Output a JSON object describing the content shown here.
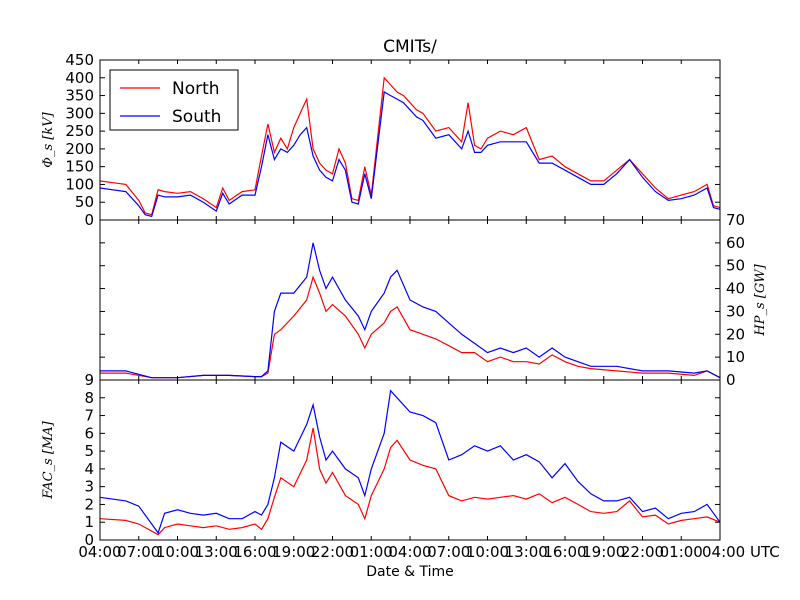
{
  "chart_data": {
    "type": "line",
    "title": "CMITs/",
    "xlabel": "Date & Time",
    "x_tick_labels": [
      "04:00",
      "07:00",
      "10:00",
      "13:00",
      "16:00",
      "19:00",
      "22:00",
      "01:00",
      "04:00",
      "07:00",
      "10:00",
      "13:00",
      "16:00",
      "19:00",
      "22:00",
      "01:00",
      "04:00 UTC"
    ],
    "xlim": [
      0,
      48
    ],
    "x_units": "hours since first tick",
    "legend": {
      "placement": "top-left",
      "entries": [
        "North",
        "South"
      ]
    },
    "colors": {
      "North": "#ff0000",
      "South": "#0000ff"
    },
    "panels": [
      {
        "name": "potential",
        "ylabel": "Φ_s [kV]",
        "ylim": [
          0,
          450
        ],
        "yticks": [
          0,
          50,
          100,
          150,
          200,
          250,
          300,
          350,
          400,
          450
        ],
        "y_axis_side": "left",
        "x": [
          0,
          1,
          2,
          3,
          3.5,
          4,
          4.5,
          5,
          6,
          7,
          8,
          9,
          9.5,
          10,
          11,
          12,
          12.5,
          13,
          13.5,
          14,
          14.5,
          15,
          15.5,
          16,
          16.5,
          17,
          17.5,
          18,
          18.5,
          19,
          19.5,
          20,
          20.5,
          21,
          22,
          22.5,
          23,
          23.5,
          24,
          24.5,
          25,
          26,
          27,
          28,
          28.5,
          29,
          29.5,
          30,
          31,
          32,
          33,
          34,
          35,
          36,
          37,
          38,
          39,
          40,
          41,
          42,
          43,
          44,
          45,
          46,
          47,
          47.5,
          48
        ],
        "series": [
          {
            "name": "North",
            "values": [
              110,
              105,
              100,
              55,
              20,
              15,
              85,
              80,
              75,
              80,
              60,
              35,
              90,
              55,
              80,
              85,
              180,
              270,
              190,
              230,
              200,
              260,
              300,
              340,
              200,
              160,
              140,
              130,
              200,
              160,
              60,
              55,
              150,
              70,
              400,
              380,
              360,
              350,
              330,
              310,
              300,
              250,
              260,
              220,
              330,
              210,
              200,
              230,
              250,
              240,
              260,
              170,
              180,
              150,
              130,
              110,
              110,
              140,
              170,
              130,
              90,
              60,
              70,
              80,
              100,
              40,
              35
            ]
          },
          {
            "name": "South",
            "values": [
              90,
              85,
              80,
              40,
              15,
              10,
              70,
              65,
              65,
              70,
              50,
              25,
              75,
              45,
              70,
              70,
              150,
              240,
              170,
              200,
              190,
              210,
              240,
              260,
              180,
              140,
              120,
              110,
              170,
              140,
              50,
              45,
              130,
              60,
              360,
              350,
              340,
              330,
              310,
              290,
              280,
              230,
              240,
              200,
              250,
              190,
              190,
              210,
              220,
              220,
              220,
              160,
              160,
              140,
              120,
              100,
              100,
              130,
              170,
              120,
              80,
              55,
              60,
              70,
              90,
              35,
              30
            ]
          }
        ]
      },
      {
        "name": "hemispheric-power",
        "ylabel": "HP_s [GW]",
        "ylim": [
          0,
          70
        ],
        "yticks": [
          0,
          10,
          20,
          30,
          40,
          50,
          60,
          70
        ],
        "y_axis_side": "right",
        "x": [
          0,
          2,
          4,
          6,
          8,
          10,
          12,
          12.5,
          13,
          13.5,
          14,
          15,
          16,
          16.5,
          17,
          17.5,
          18,
          19,
          20,
          20.5,
          21,
          22,
          22.5,
          23,
          24,
          25,
          26,
          27,
          28,
          29,
          30,
          31,
          32,
          33,
          34,
          35,
          36,
          37,
          38,
          40,
          42,
          44,
          46,
          47,
          48
        ],
        "series": [
          {
            "name": "North",
            "values": [
              3,
              3,
              1,
              1,
              2,
              2,
              1.5,
              1.5,
              3,
              20,
              22,
              28,
              35,
              45,
              38,
              30,
              33,
              28,
              20,
              14,
              20,
              25,
              30,
              32,
              22,
              20,
              18,
              15,
              12,
              12,
              8,
              10,
              8,
              8,
              7,
              11,
              8,
              6,
              5,
              4,
              3,
              3,
              2,
              4,
              1
            ]
          },
          {
            "name": "South",
            "values": [
              4,
              4,
              1,
              1,
              2,
              2,
              1.5,
              1.5,
              4,
              30,
              38,
              38,
              45,
              60,
              48,
              40,
              45,
              35,
              28,
              22,
              30,
              38,
              45,
              48,
              35,
              32,
              30,
              25,
              20,
              16,
              12,
              14,
              12,
              14,
              10,
              14,
              10,
              8,
              6,
              6,
              4,
              4,
              3,
              4,
              1
            ]
          }
        ]
      },
      {
        "name": "field-aligned-currents",
        "ylabel": "FAC_s [MA]",
        "ylim": [
          0,
          9
        ],
        "yticks": [
          0,
          1,
          2,
          3,
          4,
          5,
          6,
          7,
          8,
          9
        ],
        "y_axis_side": "left",
        "x": [
          0,
          2,
          3,
          4,
          4.5,
          5,
          6,
          7,
          8,
          9,
          10,
          11,
          12,
          12.5,
          13,
          13.5,
          14,
          15,
          16,
          16.5,
          17,
          17.5,
          18,
          19,
          20,
          20.5,
          21,
          22,
          22.5,
          23,
          24,
          25,
          26,
          27,
          28,
          29,
          30,
          31,
          32,
          33,
          34,
          35,
          36,
          37,
          38,
          39,
          40,
          41,
          42,
          43,
          44,
          45,
          46,
          47,
          48
        ],
        "series": [
          {
            "name": "North",
            "values": [
              1.2,
              1.1,
              0.9,
              0.5,
              0.3,
              0.7,
              0.9,
              0.8,
              0.7,
              0.8,
              0.6,
              0.7,
              0.9,
              0.6,
              1.2,
              2.4,
              3.5,
              3.0,
              4.5,
              6.3,
              4.0,
              3.2,
              3.8,
              2.5,
              2.0,
              1.2,
              2.5,
              4.0,
              5.2,
              5.6,
              4.5,
              4.2,
              4.0,
              2.5,
              2.2,
              2.4,
              2.3,
              2.4,
              2.5,
              2.3,
              2.6,
              2.1,
              2.4,
              2.0,
              1.6,
              1.5,
              1.6,
              2.2,
              1.3,
              1.4,
              0.9,
              1.1,
              1.2,
              1.3,
              1.0
            ]
          },
          {
            "name": "South",
            "values": [
              2.4,
              2.2,
              1.9,
              0.9,
              0.4,
              1.5,
              1.7,
              1.5,
              1.4,
              1.5,
              1.2,
              1.2,
              1.6,
              1.4,
              2.0,
              3.5,
              5.5,
              5.0,
              6.5,
              7.6,
              5.8,
              4.5,
              5.0,
              4.0,
              3.5,
              2.5,
              4.0,
              6.0,
              8.4,
              8.0,
              7.2,
              7.0,
              6.6,
              4.5,
              4.8,
              5.3,
              5.0,
              5.3,
              4.5,
              4.8,
              4.4,
              3.5,
              4.3,
              3.3,
              2.6,
              2.2,
              2.2,
              2.4,
              1.6,
              1.8,
              1.2,
              1.5,
              1.6,
              2.0,
              1.0
            ]
          }
        ]
      }
    ]
  }
}
